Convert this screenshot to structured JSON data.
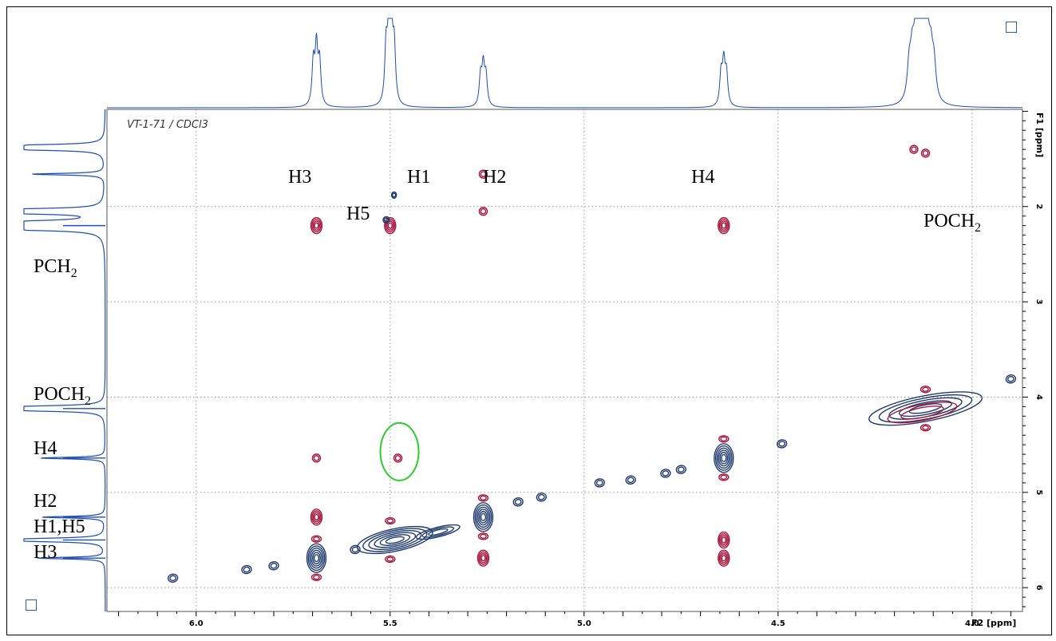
{
  "dataset_title": "VT-1-71 / CDCl3",
  "x_axis_unit": "F2 [ppm]",
  "y_axis_unit": "F1 [ppm]",
  "labels_top": [
    {
      "text": "H3",
      "ppm": 5.69
    },
    {
      "text": "H5",
      "ppm": 5.55
    },
    {
      "text": "H1",
      "ppm": 5.42
    },
    {
      "text": "H2",
      "ppm": 5.21
    },
    {
      "text": "H4",
      "ppm": 4.64
    }
  ],
  "label_poch2_top": {
    "main": "POCH",
    "sub": "2"
  },
  "labels_left": [
    {
      "main": "PCH",
      "sub": "2"
    },
    {
      "main": "POCH",
      "sub": "2"
    },
    {
      "main": "H4",
      "sub": ""
    },
    {
      "main": "H2",
      "sub": ""
    },
    {
      "main": "H1,H5",
      "sub": ""
    },
    {
      "main": "H3",
      "sub": ""
    }
  ],
  "colors": {
    "positive": "#1f3a6e",
    "negative": "#a8143c",
    "projection": "#1f4fb0",
    "highlight": "#2fcc2f",
    "grid": "#9a9a9a"
  },
  "chart_data": {
    "type": "2D NMR contour (COSY/TOCSY)",
    "x_axis": {
      "label": "F2 [ppm]",
      "range": [
        6.23,
        3.87
      ],
      "ticks": [
        6.0,
        5.5,
        5.0,
        4.5,
        4.0
      ],
      "tick_labels": [
        "6.0",
        "5.5",
        "5.0",
        "4.5",
        "4.0"
      ]
    },
    "y_axis": {
      "label": "F1 [ppm]",
      "range": [
        0.98,
        6.25
      ],
      "ticks": [
        2,
        3,
        4,
        5,
        6
      ],
      "tick_labels": [
        "2",
        "3",
        "4",
        "5",
        "6"
      ]
    },
    "grid": true,
    "diagonal_peaks": [
      {
        "x": 5.69,
        "y": 5.69,
        "sign": "positive"
      },
      {
        "x": 5.5,
        "y": 5.5,
        "sign": "positive"
      },
      {
        "x": 5.26,
        "y": 5.26,
        "sign": "positive"
      },
      {
        "x": 4.64,
        "y": 4.64,
        "sign": "positive"
      },
      {
        "x": 4.12,
        "y": 4.12,
        "sign": "positive"
      }
    ],
    "cross_peaks": [
      {
        "x": 5.69,
        "y": 2.2,
        "sign": "negative"
      },
      {
        "x": 5.5,
        "y": 2.2,
        "sign": "negative"
      },
      {
        "x": 4.64,
        "y": 2.2,
        "sign": "negative"
      },
      {
        "x": 5.26,
        "y": 1.66,
        "sign": "negative"
      },
      {
        "x": 5.26,
        "y": 2.05,
        "sign": "negative"
      },
      {
        "x": 5.69,
        "y": 4.64,
        "sign": "negative"
      },
      {
        "x": 5.48,
        "y": 4.64,
        "sign": "negative"
      },
      {
        "x": 5.69,
        "y": 5.26,
        "sign": "negative"
      },
      {
        "x": 5.26,
        "y": 5.69,
        "sign": "negative"
      },
      {
        "x": 4.64,
        "y": 5.5,
        "sign": "negative"
      },
      {
        "x": 4.64,
        "y": 5.69,
        "sign": "negative"
      },
      {
        "x": 4.15,
        "y": 1.4,
        "sign": "negative"
      },
      {
        "x": 4.12,
        "y": 1.44,
        "sign": "negative"
      }
    ],
    "highlighted_peak": {
      "x": 5.48,
      "y": 4.64
    }
  }
}
